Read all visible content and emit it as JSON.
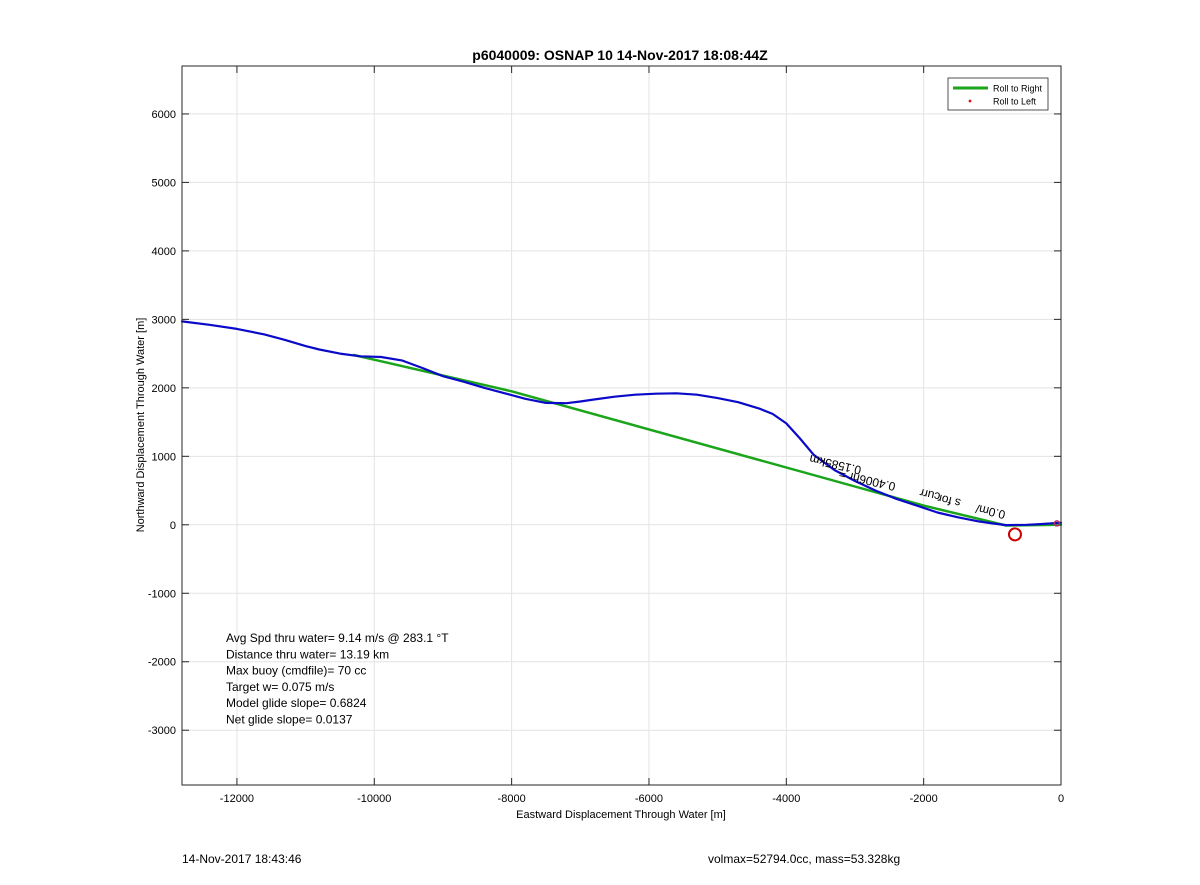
{
  "chart_data": {
    "type": "line",
    "title": "p6040009: OSNAP 10 14-Nov-2017 18:08:44Z",
    "xlabel": "Eastward Displacement Through Water [m]",
    "ylabel": "Northward Displacement Through Water [m]",
    "xlim": [
      -12800,
      0
    ],
    "ylim": [
      -3800,
      6700
    ],
    "xticks": [
      -12000,
      -10000,
      -8000,
      -6000,
      -4000,
      -2000,
      0
    ],
    "yticks": [
      -3000,
      -2000,
      -1000,
      0,
      1000,
      2000,
      3000,
      4000,
      5000,
      6000
    ],
    "grid": true,
    "legend_position": "top-right",
    "series": [
      {
        "name": "Roll to Right",
        "color": "#1aa51a",
        "x": [
          -10300,
          -8000,
          -2000,
          -800,
          0
        ],
        "y": [
          2480,
          1950,
          280,
          -10,
          0
        ]
      },
      {
        "name": "Roll to Left",
        "color": "#e01010",
        "marker": "dot",
        "x": [],
        "y": []
      },
      {
        "color": "#0a0ac8",
        "x": [
          -12800,
          -12400,
          -12000,
          -11600,
          -11300,
          -11000,
          -10800,
          -10500,
          -10200,
          -9900,
          -9600,
          -9300,
          -9000,
          -8700,
          -8400,
          -8100,
          -7800,
          -7500,
          -7200,
          -7000,
          -6800,
          -6500,
          -6200,
          -5900,
          -5600,
          -5300,
          -5000,
          -4700,
          -4400,
          -4200,
          -4000,
          -3800,
          -3600,
          -3300,
          -3000,
          -2700,
          -2400,
          -2100,
          -1800,
          -1500,
          -1200,
          -1000,
          -800,
          -500,
          -300,
          0
        ],
        "y": [
          2970,
          2920,
          2860,
          2780,
          2700,
          2610,
          2560,
          2500,
          2460,
          2450,
          2400,
          2290,
          2170,
          2090,
          2000,
          1920,
          1840,
          1780,
          1775,
          1800,
          1830,
          1870,
          1900,
          1915,
          1920,
          1900,
          1850,
          1790,
          1700,
          1620,
          1480,
          1260,
          1020,
          800,
          640,
          500,
          380,
          280,
          180,
          110,
          50,
          20,
          -5,
          0,
          10,
          30
        ]
      }
    ],
    "annotations": [
      {
        "text": "Avg Spd thru water=  9.14 m/s @ 283.1 °T"
      },
      {
        "text": "Distance thru water= 13.19 km"
      },
      {
        "text": "Max buoy (cmdfile)= 70 cc"
      },
      {
        "text": "Target w= 0.075 m/s"
      },
      {
        "text": "Model glide slope= 0.6824"
      },
      {
        "text": "Net glide slope= 0.0137"
      }
    ],
    "rotated_labels": [
      {
        "text": "0.1585km",
        "x": -2900,
        "y": 850,
        "angle": 13
      },
      {
        "text": "0.4006hr =",
        "x": -2400,
        "y": 610,
        "angle": 13
      },
      {
        "text": "curr",
        "x": -1750,
        "y": 460,
        "angle": 13
      },
      {
        "text": "s  for",
        "x": -1450,
        "y": 370,
        "angle": 13
      },
      {
        "text": "0.0m/",
        "x": -800,
        "y": 200,
        "angle": 13
      }
    ],
    "circle_marker": {
      "x": -670,
      "y": -140,
      "color": "#cc0000"
    },
    "end_marker": {
      "x": -60,
      "y": 20,
      "color": "#b0306a"
    }
  },
  "footer": {
    "timestamp": "14-Nov-2017 18:43:46",
    "vol_mass": "volmax=52794.0cc, mass=53.328kg"
  }
}
